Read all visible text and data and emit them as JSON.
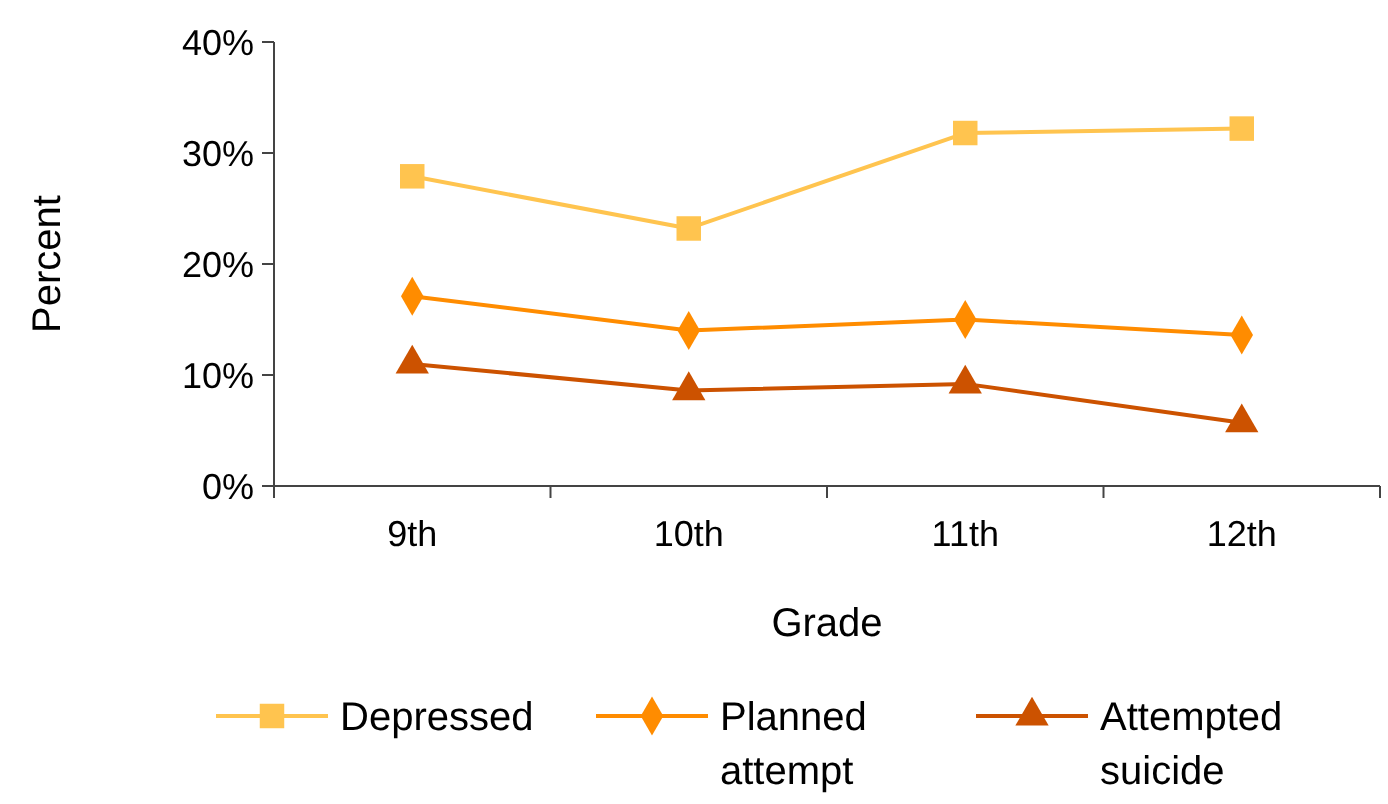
{
  "chart_data": {
    "type": "line",
    "xlabel": "Grade",
    "ylabel": "Percent",
    "categories": [
      "9th",
      "10th",
      "11th",
      "12th"
    ],
    "series": [
      {
        "name": "Depressed",
        "color": "#ffc44f",
        "marker": "square",
        "values": [
          27.9,
          23.2,
          31.8,
          32.2
        ]
      },
      {
        "name": "Planned attempt",
        "color": "#ff8c00",
        "marker": "diamond",
        "values": [
          17.1,
          14.0,
          15.0,
          13.6
        ]
      },
      {
        "name": "Attempted suicide",
        "color": "#cc5200",
        "marker": "triangle",
        "values": [
          11.0,
          8.6,
          9.2,
          5.7
        ]
      }
    ],
    "ylim": [
      0,
      40
    ],
    "yticks": [
      {
        "value": 0,
        "label": "0%"
      },
      {
        "value": 10,
        "label": "10%"
      },
      {
        "value": 20,
        "label": "20%"
      },
      {
        "value": 30,
        "label": "30%"
      },
      {
        "value": 40,
        "label": "40%"
      }
    ],
    "grid": false,
    "legend": "bottom"
  }
}
